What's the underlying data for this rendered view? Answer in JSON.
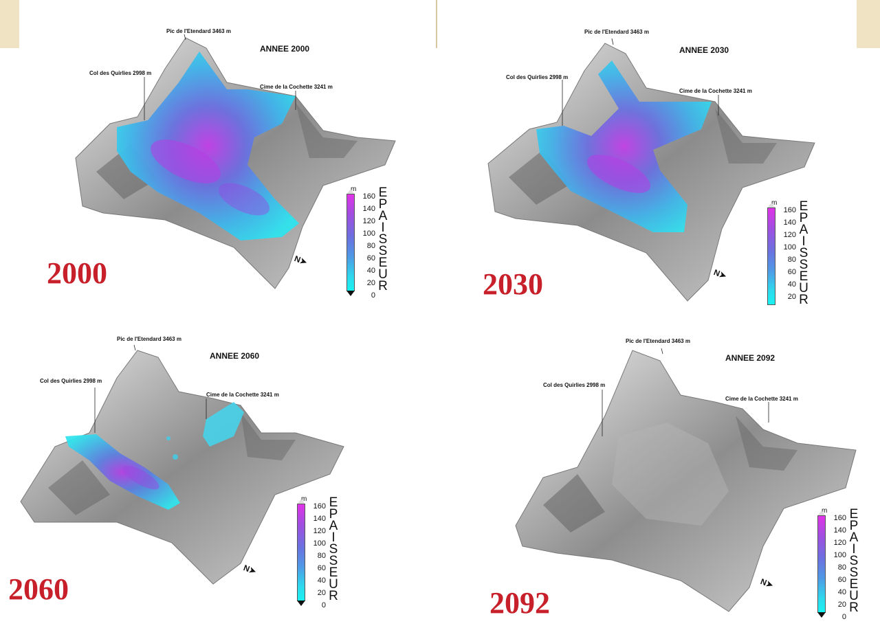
{
  "labels": {
    "peak": "Pic de l'Etendard 3463 m",
    "col": "Col des Quirlies 2998 m",
    "cime": "Cime de la Cochette 3241 m"
  },
  "legend": {
    "unit": "m",
    "ticks": [
      "160",
      "140",
      "120",
      "100",
      "80",
      "60",
      "40",
      "20",
      "0"
    ],
    "title": "EPAISSEUR"
  },
  "north_symbol": "N",
  "panels": [
    {
      "year_label": "2000",
      "annee": "ANNEE 2000",
      "ice_fraction": 1.0
    },
    {
      "year_label": "2030",
      "annee": "ANNEE 2030",
      "ice_fraction": 0.8
    },
    {
      "year_label": "2060",
      "annee": "ANNEE 2060",
      "ice_fraction": 0.35
    },
    {
      "year_label": "2092",
      "annee": "ANNEE 2092",
      "ice_fraction": 0.0
    }
  ],
  "colors": {
    "year_red": "#c8202a",
    "ice_cyan": "#2fe3ee",
    "ice_magenta": "#d040e0",
    "ice_blue": "#5a7ee0",
    "terrain_gray": "#9a9a9a",
    "decor_gold": "#efe3c4"
  }
}
